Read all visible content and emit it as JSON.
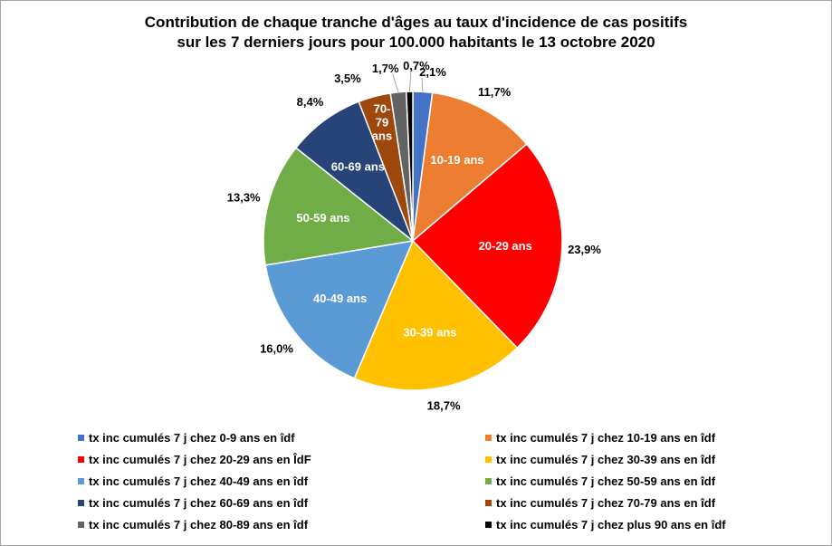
{
  "chart_data": {
    "type": "pie",
    "title_lines": [
      "Contribution de chaque tranche d'âges au taux d'incidence de cas positifs",
      "sur les 7 derniers jours pour 100.000 habitants le 13 octobre 2020"
    ],
    "slices": [
      {
        "slice_label": "",
        "percent_label": "2,1%",
        "value": 2.1,
        "color": "#4472c4",
        "legend": "tx inc cumulés 7 j chez 0-9 ans en îdf"
      },
      {
        "slice_label": "10-19 ans",
        "percent_label": "11,7%",
        "value": 11.7,
        "color": "#ed7d31",
        "legend": "tx inc cumulés 7 j chez 10-19 ans en îdf"
      },
      {
        "slice_label": "20-29 ans",
        "percent_label": "23,9%",
        "value": 23.9,
        "color": "#ff0000",
        "legend": "tx inc cumulés 7 j chez 20-29 ans en ÎdF"
      },
      {
        "slice_label": "30-39 ans",
        "percent_label": "18,7%",
        "value": 18.7,
        "color": "#ffc000",
        "legend": "tx inc cumulés 7 j chez 30-39 ans en îdf"
      },
      {
        "slice_label": "40-49 ans",
        "percent_label": "16,0%",
        "value": 16.0,
        "color": "#5b9bd5",
        "legend": "tx inc cumulés 7 j chez 40-49 ans en îdf"
      },
      {
        "slice_label": "50-59 ans",
        "percent_label": "13,3%",
        "value": 13.3,
        "color": "#70ad47",
        "legend": "tx inc cumulés 7 j chez 50-59 ans en îdf"
      },
      {
        "slice_label": "60-69 ans",
        "percent_label": "8,4%",
        "value": 8.4,
        "color": "#264478",
        "legend": "tx inc cumulés 7 j chez 60-69 ans en îdf"
      },
      {
        "slice_label": "70-79 ans",
        "percent_label": "3,5%",
        "value": 3.5,
        "color": "#9e480e",
        "legend": "tx inc cumulés 7 j chez 70-79 ans en îdf"
      },
      {
        "slice_label": "",
        "percent_label": "1,7%",
        "value": 1.7,
        "color": "#636363",
        "legend": "tx inc cumulés 7 j chez 80-89 ans en îdf"
      },
      {
        "slice_label": "",
        "percent_label": "0,7%",
        "value": 0.7,
        "color": "#000000",
        "legend": "tx inc cumulés 7 j chez plus 90 ans en îdf"
      }
    ],
    "legend_placement": "bottom"
  }
}
